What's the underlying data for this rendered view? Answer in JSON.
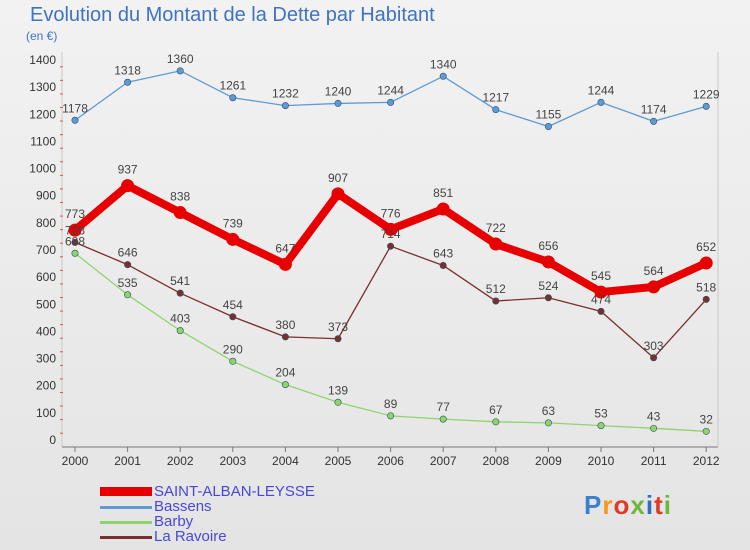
{
  "header": {
    "title": "Evolution du Montant de la Dette par Habitant",
    "subtitle": "(en €)"
  },
  "logo": {
    "text": "Proxiti",
    "colors": [
      "#3b7fd1",
      "#f39a1a",
      "#e0392b",
      "#6fb73a",
      "#2f6fc4",
      "#e0392b",
      "#6fb73a"
    ]
  },
  "chart_data": {
    "type": "line",
    "title": "Evolution du Montant de la Dette par Habitant",
    "subtitle": "(en €)",
    "xlabel": "",
    "ylabel": "",
    "categories": [
      "2000",
      "2001",
      "2002",
      "2003",
      "2004",
      "2005",
      "2006",
      "2007",
      "2008",
      "2009",
      "2010",
      "2011",
      "2012"
    ],
    "ylim": [
      0,
      1400
    ],
    "yticks": [
      0,
      100,
      200,
      300,
      400,
      500,
      600,
      700,
      800,
      900,
      1000,
      1100,
      1200,
      1300,
      1400
    ],
    "grid": false,
    "legend_position": "bottom-left",
    "series": [
      {
        "name": "SAINT-ALBAN-LEYSSE",
        "color": "#e80000",
        "values": [
          773,
          937,
          838,
          739,
          647,
          907,
          776,
          851,
          722,
          656,
          545,
          564,
          652
        ]
      },
      {
        "name": "Bassens",
        "color": "#5d9bd2",
        "values": [
          1178,
          1318,
          1360,
          1261,
          1232,
          1240,
          1244,
          1340,
          1217,
          1155,
          1244,
          1174,
          1229
        ]
      },
      {
        "name": "Barby",
        "color": "#8fd46a",
        "values": [
          688,
          535,
          403,
          290,
          204,
          139,
          89,
          77,
          67,
          63,
          53,
          43,
          32
        ]
      },
      {
        "name": "La Ravoire",
        "color": "#7a2f2f",
        "values": [
          728,
          646,
          541,
          454,
          380,
          373,
          714,
          643,
          512,
          524,
          474,
          303,
          518
        ]
      }
    ]
  }
}
